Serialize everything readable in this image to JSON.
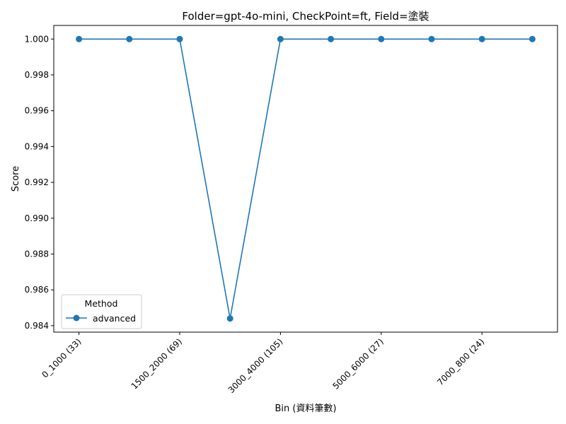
{
  "chart_data": {
    "type": "line",
    "title": "Folder=gpt-4o-mini, CheckPoint=ft, Field=塗裝",
    "xlabel": "Bin (資料筆數)",
    "ylabel": "Score",
    "x_index": [
      0,
      1,
      2,
      3,
      4,
      5,
      6,
      7,
      8,
      9
    ],
    "x_tick_positions": [
      0,
      2,
      4,
      6,
      8
    ],
    "x_tick_labels": [
      "0_1000 (33)",
      "1500_2000 (69)",
      "3000_4000 (105)",
      "5000_6000 (27)",
      "7000_800 (24)"
    ],
    "ylim": [
      0.98364,
      1.00076
    ],
    "y_ticks": [
      0.984,
      0.986,
      0.988,
      0.99,
      0.992,
      0.994,
      0.996,
      0.998,
      1.0
    ],
    "y_tick_labels": [
      "0.984",
      "0.986",
      "0.988",
      "0.990",
      "0.992",
      "0.994",
      "0.996",
      "0.998",
      "1.000"
    ],
    "series": [
      {
        "name": "advanced",
        "color": "#1f77b4",
        "marker": "circle",
        "values": [
          1.0,
          1.0,
          1.0,
          0.9844,
          1.0,
          1.0,
          1.0,
          1.0,
          1.0,
          1.0
        ]
      }
    ],
    "legend": {
      "title": "Method",
      "placement": "lower-left"
    },
    "grid": false
  }
}
